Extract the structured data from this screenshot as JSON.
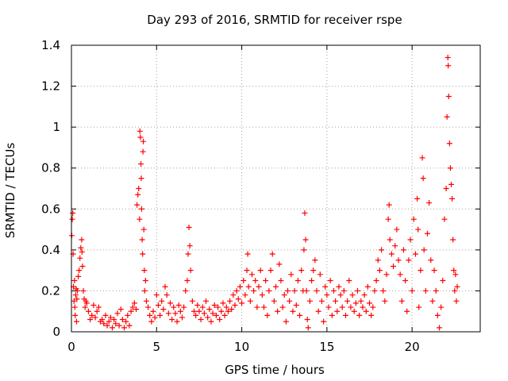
{
  "chart_data": {
    "type": "scatter",
    "title": "Day 293 of 2016, SRMTID for receiver rspe",
    "xlabel": "GPS time / hours",
    "ylabel": "SRMTID / TECUs",
    "xlim": [
      0,
      24
    ],
    "ylim": [
      0,
      1.4
    ],
    "xticks": [
      0,
      5,
      10,
      15,
      20
    ],
    "yticks": [
      0,
      0.2,
      0.4,
      0.6,
      0.8,
      1,
      1.2,
      1.4
    ],
    "xtick_labels": [
      "0",
      "5",
      "10",
      "15",
      "20"
    ],
    "ytick_labels": [
      "0",
      "0.2",
      "0.4",
      "0.6",
      "0.8",
      "1",
      "1.2",
      "1.4"
    ],
    "grid": true,
    "marker": "+",
    "series": [
      {
        "name": "SRMTID",
        "color": "#ff0000",
        "points": [
          [
            0.02,
            0.47
          ],
          [
            0.05,
            0.55
          ],
          [
            0.08,
            0.58
          ],
          [
            0.1,
            0.38
          ],
          [
            0.12,
            0.22
          ],
          [
            0.15,
            0.15
          ],
          [
            0.18,
            0.25
          ],
          [
            0.2,
            0.12
          ],
          [
            0.22,
            0.08
          ],
          [
            0.25,
            0.18
          ],
          [
            0.28,
            0.21
          ],
          [
            0.3,
            0.05
          ],
          [
            0.32,
            0.16
          ],
          [
            0.35,
            0.2
          ],
          [
            0.4,
            0.27
          ],
          [
            0.45,
            0.3
          ],
          [
            0.5,
            0.36
          ],
          [
            0.55,
            0.41
          ],
          [
            0.6,
            0.45
          ],
          [
            0.62,
            0.39
          ],
          [
            0.65,
            0.32
          ],
          [
            0.7,
            0.2
          ],
          [
            0.75,
            0.16
          ],
          [
            0.8,
            0.12
          ],
          [
            0.85,
            0.15
          ],
          [
            0.9,
            0.14
          ],
          [
            1.0,
            0.1
          ],
          [
            1.1,
            0.06
          ],
          [
            1.2,
            0.08
          ],
          [
            1.3,
            0.13
          ],
          [
            1.4,
            0.07
          ],
          [
            1.5,
            0.1
          ],
          [
            1.6,
            0.12
          ],
          [
            1.7,
            0.05
          ],
          [
            1.8,
            0.06
          ],
          [
            1.9,
            0.04
          ],
          [
            2.0,
            0.08
          ],
          [
            2.1,
            0.03
          ],
          [
            2.2,
            0.05
          ],
          [
            2.3,
            0.07
          ],
          [
            2.4,
            0.02
          ],
          [
            2.5,
            0.06
          ],
          [
            2.6,
            0.04
          ],
          [
            2.7,
            0.09
          ],
          [
            2.8,
            0.03
          ],
          [
            2.9,
            0.11
          ],
          [
            3.0,
            0.06
          ],
          [
            3.1,
            0.02
          ],
          [
            3.2,
            0.05
          ],
          [
            3.3,
            0.08
          ],
          [
            3.4,
            0.03
          ],
          [
            3.5,
            0.1
          ],
          [
            3.6,
            0.12
          ],
          [
            3.7,
            0.14
          ],
          [
            3.8,
            0.11
          ],
          [
            3.85,
            0.62
          ],
          [
            3.9,
            0.67
          ],
          [
            3.95,
            0.7
          ],
          [
            4.0,
            0.55
          ],
          [
            4.02,
            0.98
          ],
          [
            4.05,
            0.95
          ],
          [
            4.08,
            0.82
          ],
          [
            4.1,
            0.75
          ],
          [
            4.12,
            0.6
          ],
          [
            4.15,
            0.45
          ],
          [
            4.18,
            0.38
          ],
          [
            4.2,
            0.88
          ],
          [
            4.22,
            0.93
          ],
          [
            4.25,
            0.5
          ],
          [
            4.28,
            0.3
          ],
          [
            4.3,
            0.2
          ],
          [
            4.35,
            0.25
          ],
          [
            4.4,
            0.15
          ],
          [
            4.5,
            0.12
          ],
          [
            4.6,
            0.08
          ],
          [
            4.7,
            0.05
          ],
          [
            4.8,
            0.1
          ],
          [
            4.9,
            0.07
          ],
          [
            5.0,
            0.18
          ],
          [
            5.1,
            0.13
          ],
          [
            5.2,
            0.08
          ],
          [
            5.3,
            0.15
          ],
          [
            5.4,
            0.11
          ],
          [
            5.5,
            0.22
          ],
          [
            5.6,
            0.18
          ],
          [
            5.7,
            0.09
          ],
          [
            5.8,
            0.14
          ],
          [
            5.9,
            0.06
          ],
          [
            6.0,
            0.12
          ],
          [
            6.1,
            0.09
          ],
          [
            6.2,
            0.05
          ],
          [
            6.3,
            0.13
          ],
          [
            6.4,
            0.1
          ],
          [
            6.5,
            0.07
          ],
          [
            6.6,
            0.12
          ],
          [
            6.7,
            0.2
          ],
          [
            6.8,
            0.25
          ],
          [
            6.85,
            0.38
          ],
          [
            6.9,
            0.51
          ],
          [
            6.95,
            0.42
          ],
          [
            7.0,
            0.3
          ],
          [
            7.1,
            0.15
          ],
          [
            7.2,
            0.1
          ],
          [
            7.3,
            0.08
          ],
          [
            7.4,
            0.13
          ],
          [
            7.5,
            0.1
          ],
          [
            7.6,
            0.06
          ],
          [
            7.7,
            0.12
          ],
          [
            7.8,
            0.09
          ],
          [
            7.9,
            0.15
          ],
          [
            8.0,
            0.07
          ],
          [
            8.1,
            0.11
          ],
          [
            8.2,
            0.05
          ],
          [
            8.3,
            0.09
          ],
          [
            8.4,
            0.13
          ],
          [
            8.5,
            0.08
          ],
          [
            8.6,
            0.12
          ],
          [
            8.7,
            0.06
          ],
          [
            8.8,
            0.1
          ],
          [
            8.9,
            0.14
          ],
          [
            9.0,
            0.08
          ],
          [
            9.1,
            0.12
          ],
          [
            9.2,
            0.1
          ],
          [
            9.3,
            0.15
          ],
          [
            9.4,
            0.11
          ],
          [
            9.5,
            0.18
          ],
          [
            9.6,
            0.13
          ],
          [
            9.7,
            0.2
          ],
          [
            9.8,
            0.16
          ],
          [
            9.9,
            0.22
          ],
          [
            10.0,
            0.14
          ],
          [
            10.1,
            0.25
          ],
          [
            10.2,
            0.18
          ],
          [
            10.3,
            0.3
          ],
          [
            10.35,
            0.38
          ],
          [
            10.4,
            0.22
          ],
          [
            10.5,
            0.15
          ],
          [
            10.6,
            0.28
          ],
          [
            10.7,
            0.2
          ],
          [
            10.8,
            0.25
          ],
          [
            10.9,
            0.12
          ],
          [
            11.0,
            0.22
          ],
          [
            11.1,
            0.3
          ],
          [
            11.2,
            0.18
          ],
          [
            11.3,
            0.12
          ],
          [
            11.4,
            0.25
          ],
          [
            11.5,
            0.08
          ],
          [
            11.6,
            0.2
          ],
          [
            11.7,
            0.3
          ],
          [
            11.8,
            0.38
          ],
          [
            11.9,
            0.15
          ],
          [
            12.0,
            0.22
          ],
          [
            12.1,
            0.1
          ],
          [
            12.2,
            0.33
          ],
          [
            12.3,
            0.25
          ],
          [
            12.4,
            0.12
          ],
          [
            12.5,
            0.18
          ],
          [
            12.6,
            0.05
          ],
          [
            12.7,
            0.2
          ],
          [
            12.8,
            0.15
          ],
          [
            12.9,
            0.28
          ],
          [
            13.0,
            0.1
          ],
          [
            13.1,
            0.2
          ],
          [
            13.2,
            0.13
          ],
          [
            13.3,
            0.25
          ],
          [
            13.4,
            0.08
          ],
          [
            13.5,
            0.3
          ],
          [
            13.6,
            0.2
          ],
          [
            13.65,
            0.4
          ],
          [
            13.7,
            0.58
          ],
          [
            13.75,
            0.45
          ],
          [
            13.8,
            0.2
          ],
          [
            13.85,
            0.06
          ],
          [
            13.9,
            0.02
          ],
          [
            14.0,
            0.15
          ],
          [
            14.1,
            0.25
          ],
          [
            14.2,
            0.3
          ],
          [
            14.3,
            0.35
          ],
          [
            14.4,
            0.2
          ],
          [
            14.5,
            0.1
          ],
          [
            14.6,
            0.28
          ],
          [
            14.7,
            0.15
          ],
          [
            14.8,
            0.05
          ],
          [
            14.9,
            0.22
          ],
          [
            15.0,
            0.18
          ],
          [
            15.1,
            0.12
          ],
          [
            15.2,
            0.25
          ],
          [
            15.3,
            0.08
          ],
          [
            15.4,
            0.2
          ],
          [
            15.5,
            0.15
          ],
          [
            15.6,
            0.1
          ],
          [
            15.7,
            0.22
          ],
          [
            15.8,
            0.18
          ],
          [
            15.9,
            0.12
          ],
          [
            16.0,
            0.2
          ],
          [
            16.1,
            0.08
          ],
          [
            16.2,
            0.15
          ],
          [
            16.3,
            0.25
          ],
          [
            16.4,
            0.12
          ],
          [
            16.5,
            0.18
          ],
          [
            16.6,
            0.1
          ],
          [
            16.7,
            0.14
          ],
          [
            16.8,
            0.2
          ],
          [
            16.9,
            0.08
          ],
          [
            17.0,
            0.15
          ],
          [
            17.1,
            0.12
          ],
          [
            17.2,
            0.18
          ],
          [
            17.3,
            0.1
          ],
          [
            17.4,
            0.22
          ],
          [
            17.5,
            0.14
          ],
          [
            17.6,
            0.08
          ],
          [
            17.7,
            0.12
          ],
          [
            17.8,
            0.2
          ],
          [
            17.9,
            0.25
          ],
          [
            18.0,
            0.35
          ],
          [
            18.1,
            0.3
          ],
          [
            18.2,
            0.4
          ],
          [
            18.3,
            0.2
          ],
          [
            18.4,
            0.15
          ],
          [
            18.5,
            0.28
          ],
          [
            18.6,
            0.55
          ],
          [
            18.65,
            0.62
          ],
          [
            18.7,
            0.45
          ],
          [
            18.8,
            0.38
          ],
          [
            18.9,
            0.32
          ],
          [
            19.0,
            0.42
          ],
          [
            19.1,
            0.5
          ],
          [
            19.2,
            0.35
          ],
          [
            19.3,
            0.28
          ],
          [
            19.4,
            0.15
          ],
          [
            19.5,
            0.4
          ],
          [
            19.6,
            0.25
          ],
          [
            19.7,
            0.1
          ],
          [
            19.8,
            0.35
          ],
          [
            19.9,
            0.45
          ],
          [
            20.0,
            0.2
          ],
          [
            20.1,
            0.55
          ],
          [
            20.2,
            0.38
          ],
          [
            20.3,
            0.65
          ],
          [
            20.35,
            0.5
          ],
          [
            20.4,
            0.12
          ],
          [
            20.5,
            0.3
          ],
          [
            20.6,
            0.85
          ],
          [
            20.65,
            0.75
          ],
          [
            20.7,
            0.4
          ],
          [
            20.8,
            0.2
          ],
          [
            20.9,
            0.48
          ],
          [
            21.0,
            0.63
          ],
          [
            21.1,
            0.35
          ],
          [
            21.2,
            0.15
          ],
          [
            21.3,
            0.3
          ],
          [
            21.4,
            0.2
          ],
          [
            21.5,
            0.08
          ],
          [
            21.6,
            0.02
          ],
          [
            21.7,
            0.12
          ],
          [
            21.8,
            0.25
          ],
          [
            21.9,
            0.55
          ],
          [
            22.0,
            0.7
          ],
          [
            22.05,
            1.05
          ],
          [
            22.1,
            1.34
          ],
          [
            22.12,
            1.3
          ],
          [
            22.15,
            1.15
          ],
          [
            22.2,
            0.92
          ],
          [
            22.25,
            0.8
          ],
          [
            22.3,
            0.72
          ],
          [
            22.35,
            0.65
          ],
          [
            22.4,
            0.45
          ],
          [
            22.45,
            0.3
          ],
          [
            22.5,
            0.2
          ],
          [
            22.55,
            0.28
          ],
          [
            22.6,
            0.15
          ],
          [
            22.65,
            0.22
          ]
        ]
      }
    ]
  }
}
